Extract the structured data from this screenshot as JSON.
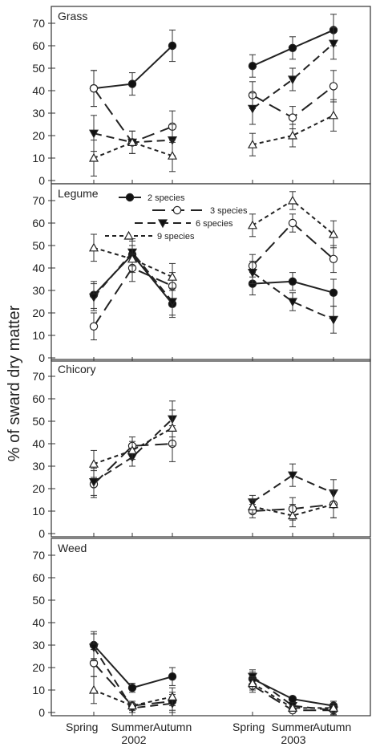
{
  "chart_data": {
    "type": "line",
    "ylabel": "% of sward dry matter",
    "ylim": [
      0,
      75
    ],
    "yticks": [
      0,
      10,
      20,
      30,
      40,
      50,
      60,
      70
    ],
    "x_categories": [
      "Spring",
      "Summer",
      "Autumn",
      "Spring",
      "Summer",
      "Autumn"
    ],
    "year_labels": [
      "2002",
      "2003"
    ],
    "legend": [
      "2 species",
      "3 species",
      "6 species",
      "9 species"
    ],
    "series_styles": [
      {
        "name": "2 species",
        "marker": "circle-filled",
        "dash": ""
      },
      {
        "name": "3 species",
        "marker": "circle-open",
        "dash": "16,8"
      },
      {
        "name": "6 species",
        "marker": "triangle-down-filled",
        "dash": "10,6"
      },
      {
        "name": "9 species",
        "marker": "triangle-up-open",
        "dash": "5,4"
      }
    ],
    "panels": [
      {
        "title": "Grass",
        "series": [
          {
            "name": "2 species",
            "y2002": [
              41,
              43,
              60
            ],
            "y2003": [
              51,
              59,
              67
            ],
            "err2002": [
              8,
              5,
              7
            ],
            "err2003": [
              5,
              5,
              7
            ]
          },
          {
            "name": "3 species",
            "y2002": [
              41,
              17,
              24
            ],
            "y2003": [
              38,
              28,
              42
            ],
            "err2002": [
              8,
              5,
              7
            ],
            "err2003": [
              6,
              5,
              7
            ]
          },
          {
            "name": "6 species",
            "y2002": [
              21,
              17,
              18
            ],
            "y2003": [
              32,
              45,
              61
            ],
            "err2002": [
              8,
              5,
              7
            ],
            "err2003": [
              7,
              5,
              7
            ]
          },
          {
            "name": "9 species",
            "y2002": [
              10,
              17,
              11
            ],
            "y2003": [
              16,
              20,
              29
            ],
            "err2002": [
              8,
              5,
              7
            ],
            "err2003": [
              5,
              5,
              7
            ]
          }
        ]
      },
      {
        "title": "Legume",
        "series": [
          {
            "name": "2 species",
            "y2002": [
              28,
              46,
              24
            ],
            "y2003": [
              33,
              34,
              29
            ],
            "err2002": [
              6,
              6,
              6
            ],
            "err2003": [
              5,
              4,
              6
            ]
          },
          {
            "name": "3 species",
            "y2002": [
              14,
              40,
              32
            ],
            "y2003": [
              41,
              60,
              44
            ],
            "err2002": [
              6,
              6,
              6
            ],
            "err2003": [
              5,
              4,
              6
            ]
          },
          {
            "name": "6 species",
            "y2002": [
              27,
              47,
              25
            ],
            "y2003": [
              38,
              25,
              17
            ],
            "err2002": [
              6,
              6,
              6
            ],
            "err2003": [
              5,
              4,
              6
            ]
          },
          {
            "name": "9 species",
            "y2002": [
              49,
              44,
              36
            ],
            "y2003": [
              59,
              70,
              55
            ],
            "err2002": [
              6,
              6,
              6
            ],
            "err2003": [
              5,
              4,
              6
            ]
          }
        ]
      },
      {
        "title": "Chicory",
        "series": [
          {
            "name": "3 species",
            "y2002": [
              22,
              39,
              40
            ],
            "y2003": [
              10,
              11,
              13
            ],
            "err2002": [
              6,
              4,
              8
            ],
            "err2003": [
              3,
              5,
              6
            ]
          },
          {
            "name": "6 species",
            "y2002": [
              23,
              34,
              51
            ],
            "y2003": [
              14,
              26,
              18
            ],
            "err2002": [
              6,
              4,
              8
            ],
            "err2003": [
              3,
              5,
              6
            ]
          },
          {
            "name": "9 species",
            "y2002": [
              31,
              37,
              47
            ],
            "y2003": [
              12,
              8,
              13
            ],
            "err2002": [
              6,
              4,
              8
            ],
            "err2003": [
              3,
              5,
              6
            ]
          }
        ]
      },
      {
        "title": "Weed",
        "series": [
          {
            "name": "2 species",
            "y2002": [
              30,
              11,
              16
            ],
            "y2003": [
              15,
              6,
              3
            ],
            "err2002": [
              6,
              2,
              4
            ],
            "err2003": [
              3,
              1,
              2
            ]
          },
          {
            "name": "3 species",
            "y2002": [
              22,
              3,
              5
            ],
            "y2003": [
              12,
              1,
              1
            ],
            "err2002": [
              6,
              2,
              4
            ],
            "err2003": [
              3,
              1,
              2
            ]
          },
          {
            "name": "6 species",
            "y2002": [
              29,
              2,
              4
            ],
            "y2003": [
              16,
              3,
              1
            ],
            "err2002": [
              6,
              2,
              4
            ],
            "err2003": [
              3,
              1,
              2
            ]
          },
          {
            "name": "9 species",
            "y2002": [
              10,
              3,
              7
            ],
            "y2003": [
              13,
              2,
              2
            ],
            "err2002": [
              6,
              2,
              4
            ],
            "err2003": [
              3,
              1,
              2
            ]
          }
        ]
      }
    ]
  }
}
